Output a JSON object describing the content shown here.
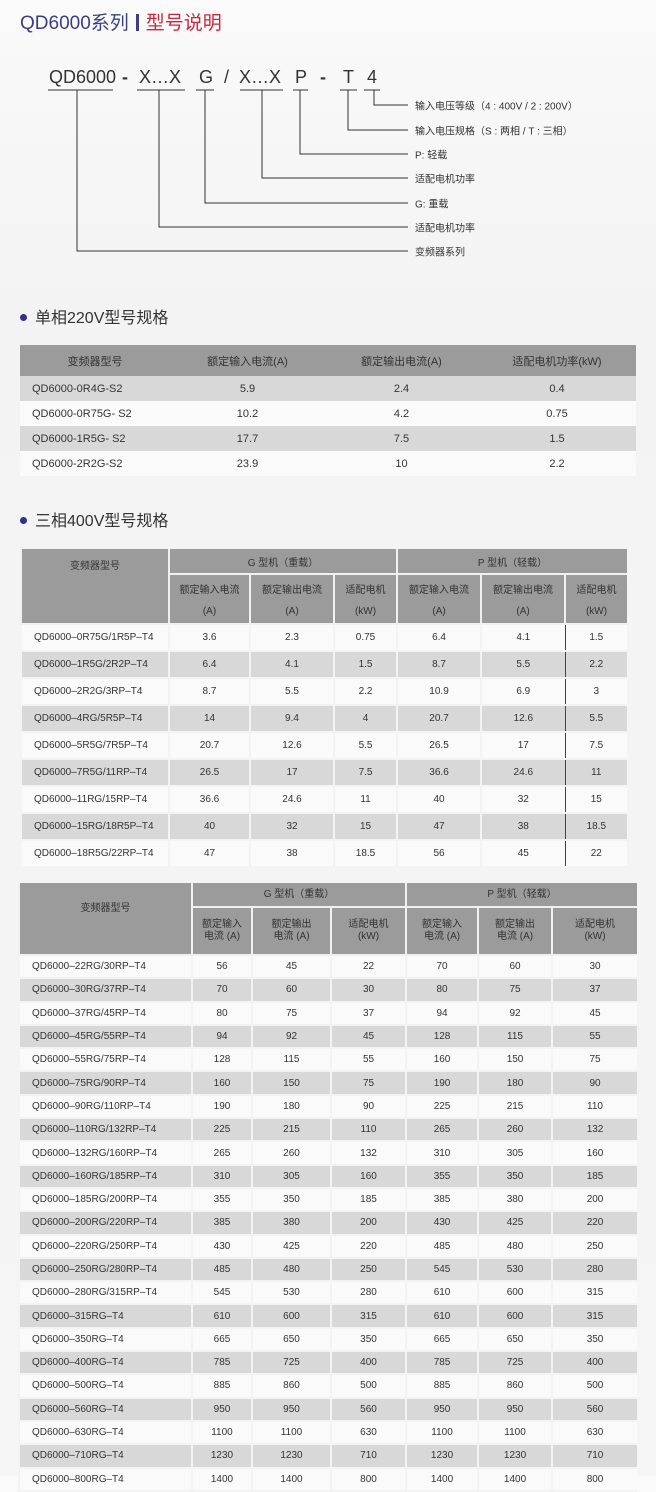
{
  "title": {
    "series": "QD6000系列",
    "subtitle": "型号说明",
    "colors": {
      "series": "#3b3f7f",
      "subtitle": "#c9283e"
    }
  },
  "code_diagram": {
    "segments": [
      "QD6000",
      "-",
      "X…X",
      "G",
      "/",
      "X…X",
      "P",
      "-",
      "T",
      "4"
    ],
    "labels": [
      "输入电压等级（4 : 400V  /  2 : 200V）",
      "输入电压规格（S : 两相  /  T : 三相）",
      "P: 轻载",
      "适配电机功率",
      "G: 重载",
      "适配电机功率",
      "变频器系列"
    ]
  },
  "single_phase": {
    "heading": "单相220V型号规格",
    "headers": [
      "变频器型号",
      "额定输入电流(A)",
      "额定输出电流(A)",
      "适配电机功率(kW)"
    ],
    "rows": [
      [
        "QD6000-0R4G-S2",
        "5.9",
        "2.4",
        "0.4"
      ],
      [
        "QD6000-0R75G- S2",
        "10.2",
        "4.2",
        "0.75"
      ],
      [
        "QD6000-1R5G- S2",
        "17.7",
        "7.5",
        "1.5"
      ],
      [
        "QD6000-2R2G-S2",
        "23.9",
        "10",
        "2.2"
      ]
    ]
  },
  "three_phase": {
    "heading": "三相400V型号规格",
    "model_header": "变频器型号",
    "group_g": "G 型机（重载）",
    "group_p": "P 型机（轻载）",
    "sub_headers": [
      "额定输入电流",
      "(A)",
      "额定输出电流",
      "(A)",
      "适配电机",
      "(kW)"
    ],
    "rows": [
      [
        "QD6000–0R75G/1R5P–T4",
        "3.6",
        "2.3",
        "0.75",
        "6.4",
        "4.1",
        "1.5"
      ],
      [
        "QD6000–1R5G/2R2P–T4",
        "6.4",
        "4.1",
        "1.5",
        "8.7",
        "5.5",
        "2.2"
      ],
      [
        "QD6000–2R2G/3RP–T4",
        "8.7",
        "5.5",
        "2.2",
        "10.9",
        "6.9",
        "3"
      ],
      [
        "QD6000–4RG/5R5P–T4",
        "14",
        "9.4",
        "4",
        "20.7",
        "12.6",
        "5.5"
      ],
      [
        "QD6000–5R5G/7R5P–T4",
        "20.7",
        "12.6",
        "5.5",
        "26.5",
        "17",
        "7.5"
      ],
      [
        "QD6000–7R5G/11RP–T4",
        "26.5",
        "17",
        "7.5",
        "36.6",
        "24.6",
        "11"
      ],
      [
        "QD6000–11RG/15RP–T4",
        "36.6",
        "24.6",
        "11",
        "40",
        "32",
        "15"
      ],
      [
        "QD6000–15RG/18R5P–T4",
        "40",
        "32",
        "15",
        "47",
        "38",
        "18.5"
      ],
      [
        "QD6000–18R5G/22RP–T4",
        "47",
        "38",
        "18.5",
        "56",
        "45",
        "22"
      ]
    ]
  },
  "three_phase_large": {
    "model_header": "变频器型号",
    "group_g": "G 型机（重载）",
    "group_p": "P 型机（轻载）",
    "sub_headers": [
      "额定输入",
      "电流 (A)",
      "额定输出",
      "电流 (A)",
      "适配电机",
      "(kW)"
    ],
    "rows": [
      [
        "QD6000–22RG/30RP–T4",
        "56",
        "45",
        "22",
        "70",
        "60",
        "30"
      ],
      [
        "QD6000–30RG/37RP–T4",
        "70",
        "60",
        "30",
        "80",
        "75",
        "37"
      ],
      [
        "QD6000–37RG/45RP–T4",
        "80",
        "75",
        "37",
        "94",
        "92",
        "45"
      ],
      [
        "QD6000–45RG/55RP–T4",
        "94",
        "92",
        "45",
        "128",
        "115",
        "55"
      ],
      [
        "QD6000–55RG/75RP–T4",
        "128",
        "115",
        "55",
        "160",
        "150",
        "75"
      ],
      [
        "QD6000–75RG/90RP–T4",
        "160",
        "150",
        "75",
        "190",
        "180",
        "90"
      ],
      [
        "QD6000–90RG/110RP–T4",
        "190",
        "180",
        "90",
        "225",
        "215",
        "110"
      ],
      [
        "QD6000–110RG/132RP–T4",
        "225",
        "215",
        "110",
        "265",
        "260",
        "132"
      ],
      [
        "QD6000–132RG/160RP–T4",
        "265",
        "260",
        "132",
        "310",
        "305",
        "160"
      ],
      [
        "QD6000–160RG/185RP–T4",
        "310",
        "305",
        "160",
        "355",
        "350",
        "185"
      ],
      [
        "QD6000–185RG/200RP–T4",
        "355",
        "350",
        "185",
        "385",
        "380",
        "200"
      ],
      [
        "QD6000–200RG/220RP–T4",
        "385",
        "380",
        "200",
        "430",
        "425",
        "220"
      ],
      [
        "QD6000–220RG/250RP–T4",
        "430",
        "425",
        "220",
        "485",
        "480",
        "250"
      ],
      [
        "QD6000–250RG/280RP–T4",
        "485",
        "480",
        "250",
        "545",
        "530",
        "280"
      ],
      [
        "QD6000–280RG/315RP–T4",
        "545",
        "530",
        "280",
        "610",
        "600",
        "315"
      ],
      [
        "QD6000–315RG–T4",
        "610",
        "600",
        "315",
        "610",
        "600",
        "315"
      ],
      [
        "QD6000–350RG–T4",
        "665",
        "650",
        "350",
        "665",
        "650",
        "350"
      ],
      [
        "QD6000–400RG–T4",
        "785",
        "725",
        "400",
        "785",
        "725",
        "400"
      ],
      [
        "QD6000–500RG–T4",
        "885",
        "860",
        "500",
        "885",
        "860",
        "500"
      ],
      [
        "QD6000–560RG–T4",
        "950",
        "950",
        "560",
        "950",
        "950",
        "560"
      ],
      [
        "QD6000–630RG–T4",
        "1100",
        "1100",
        "630",
        "1100",
        "1100",
        "630"
      ],
      [
        "QD6000–710RG–T4",
        "1230",
        "1230",
        "710",
        "1230",
        "1230",
        "710"
      ],
      [
        "QD6000–800RG–T4",
        "1400",
        "1400",
        "800",
        "1400",
        "1400",
        "800"
      ]
    ]
  }
}
